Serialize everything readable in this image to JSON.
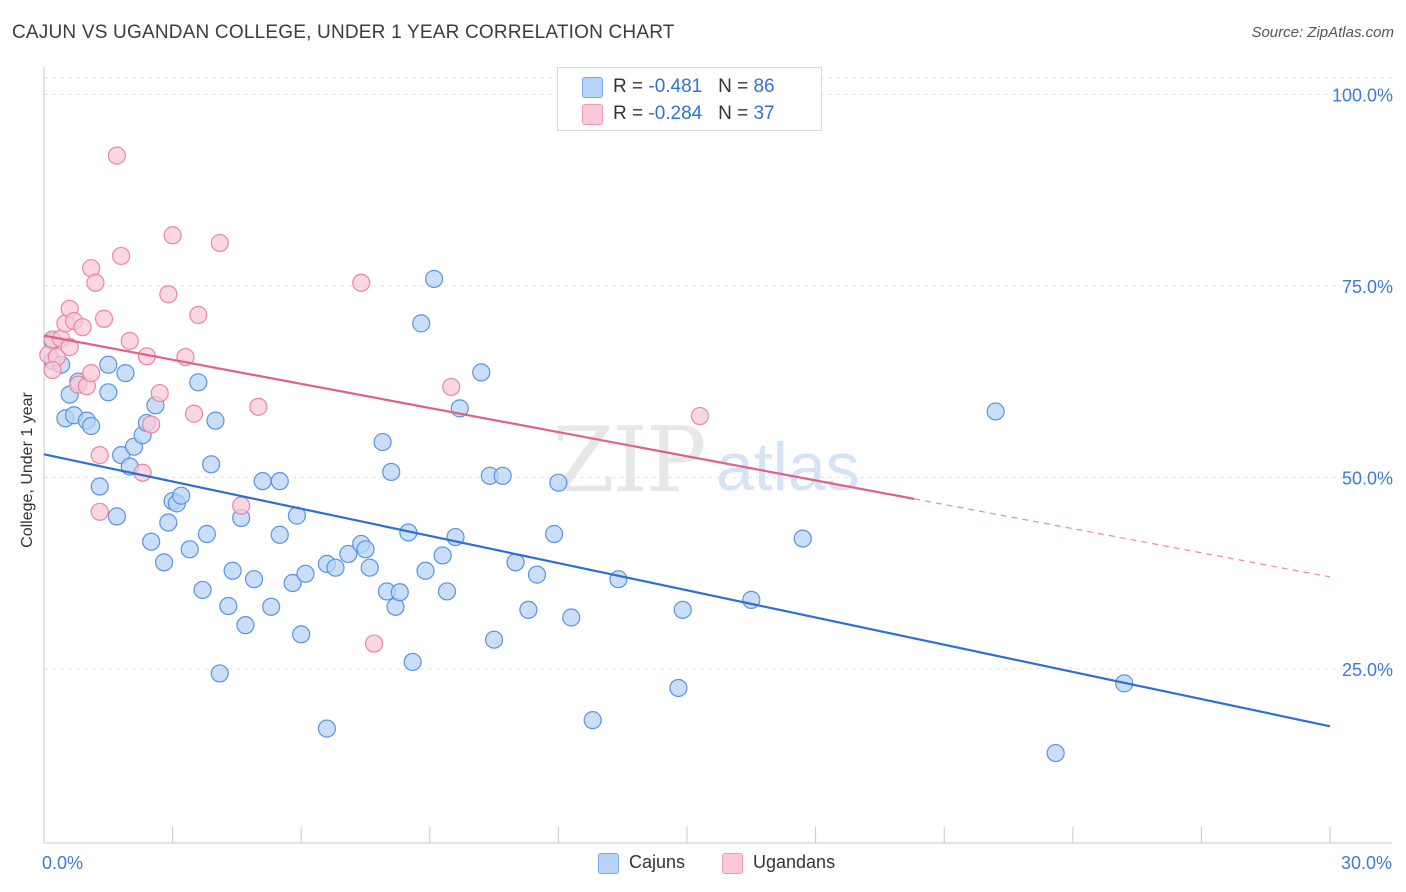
{
  "title": "CAJUN VS UGANDAN COLLEGE, UNDER 1 YEAR CORRELATION CHART",
  "source": "Source: ZipAtlas.com",
  "watermark": {
    "zip": "ZIP",
    "atlas": "atlas"
  },
  "stats": [
    {
      "r_label": "R = ",
      "r": "-0.481",
      "n_label": "N = ",
      "n": "86",
      "color": "#b7d3f7",
      "border": "#7aa9e8"
    },
    {
      "r_label": "R = ",
      "r": "-0.284",
      "n_label": "N = ",
      "n": "37",
      "color": "#f9c9d7",
      "border": "#ee9ab3"
    }
  ],
  "legend": [
    {
      "label": "Cajuns",
      "color": "#b7d3f7",
      "border": "#7aa9e8"
    },
    {
      "label": "Ugandans",
      "color": "#f9c9d7",
      "border": "#ee9ab3"
    }
  ],
  "chart_data": {
    "type": "scatter",
    "title": "CAJUN VS UGANDAN COLLEGE, UNDER 1 YEAR CORRELATION CHART",
    "xlabel": "",
    "ylabel": "College, Under 1 year",
    "xlim": [
      0,
      30
    ],
    "ylim": [
      2,
      102
    ],
    "x_tick_labels": [
      {
        "value": 0,
        "label": "0.0%"
      },
      {
        "value": 30,
        "label": "30.0%"
      }
    ],
    "y_tick_labels": [
      {
        "value": 100,
        "label": "100.0%"
      },
      {
        "value": 75,
        "label": "75.0%"
      },
      {
        "value": 50,
        "label": "50.0%"
      },
      {
        "value": 25,
        "label": "25.0%"
      }
    ],
    "grid": true,
    "legend_position": "bottom-center",
    "series": [
      {
        "name": "Cajuns",
        "color": "#5a93df",
        "fill": "#b7d3f7",
        "trend": {
          "x": [
            0,
            30
          ],
          "y": [
            53,
            17.5
          ],
          "dashed_from": null
        },
        "points": [
          [
            0.2,
            65.2
          ],
          [
            0.2,
            67.8
          ],
          [
            0.4,
            64.7
          ],
          [
            0.5,
            57.7
          ],
          [
            0.6,
            60.8
          ],
          [
            0.7,
            58.1
          ],
          [
            0.8,
            62.5
          ],
          [
            1.0,
            57.4
          ],
          [
            1.1,
            56.7
          ],
          [
            1.3,
            48.8
          ],
          [
            1.5,
            61.1
          ],
          [
            1.5,
            64.7
          ],
          [
            1.7,
            44.9
          ],
          [
            1.8,
            52.9
          ],
          [
            1.9,
            63.6
          ],
          [
            2.0,
            51.4
          ],
          [
            2.1,
            54.0
          ],
          [
            2.3,
            55.5
          ],
          [
            2.4,
            57.1
          ],
          [
            2.5,
            41.6
          ],
          [
            2.6,
            59.4
          ],
          [
            2.8,
            38.9
          ],
          [
            2.9,
            44.1
          ],
          [
            3.0,
            46.9
          ],
          [
            3.1,
            46.6
          ],
          [
            3.2,
            47.6
          ],
          [
            3.4,
            40.6
          ],
          [
            3.6,
            62.4
          ],
          [
            3.7,
            35.3
          ],
          [
            3.8,
            42.6
          ],
          [
            3.9,
            51.7
          ],
          [
            4.0,
            57.4
          ],
          [
            4.1,
            24.4
          ],
          [
            4.3,
            33.2
          ],
          [
            4.4,
            37.8
          ],
          [
            4.6,
            44.7
          ],
          [
            4.7,
            30.7
          ],
          [
            4.9,
            36.7
          ],
          [
            5.1,
            49.5
          ],
          [
            5.3,
            33.1
          ],
          [
            5.5,
            49.5
          ],
          [
            5.5,
            42.5
          ],
          [
            5.8,
            36.2
          ],
          [
            5.9,
            45.0
          ],
          [
            6.0,
            29.5
          ],
          [
            6.1,
            37.4
          ],
          [
            6.6,
            38.7
          ],
          [
            6.6,
            17.2
          ],
          [
            6.8,
            38.2
          ],
          [
            7.1,
            40.0
          ],
          [
            7.4,
            41.3
          ],
          [
            7.5,
            40.6
          ],
          [
            7.6,
            38.2
          ],
          [
            7.9,
            54.6
          ],
          [
            8.0,
            35.1
          ],
          [
            8.1,
            50.7
          ],
          [
            8.2,
            33.1
          ],
          [
            8.3,
            35.0
          ],
          [
            8.5,
            42.8
          ],
          [
            8.6,
            25.9
          ],
          [
            8.9,
            37.8
          ],
          [
            9.3,
            39.8
          ],
          [
            9.4,
            35.1
          ],
          [
            9.6,
            42.2
          ],
          [
            9.7,
            59.0
          ],
          [
            10.2,
            63.7
          ],
          [
            10.4,
            50.2
          ],
          [
            10.5,
            28.8
          ],
          [
            10.7,
            50.2
          ],
          [
            11.0,
            38.9
          ],
          [
            11.3,
            32.7
          ],
          [
            11.5,
            37.3
          ],
          [
            11.9,
            42.6
          ],
          [
            12.0,
            49.3
          ],
          [
            12.3,
            31.7
          ],
          [
            12.8,
            18.3
          ],
          [
            13.4,
            36.7
          ],
          [
            14.8,
            22.5
          ],
          [
            14.9,
            32.7
          ],
          [
            16.5,
            34.0
          ],
          [
            17.7,
            42.0
          ],
          [
            22.2,
            58.6
          ],
          [
            23.6,
            14.0
          ],
          [
            25.2,
            23.1
          ],
          [
            8.8,
            70.1
          ],
          [
            9.1,
            75.9
          ]
        ]
      },
      {
        "name": "Ugandans",
        "color": "#ea86a4",
        "fill": "#f9c9d7",
        "trend": {
          "x": [
            0,
            30
          ],
          "y": [
            68.5,
            37
          ],
          "dashed_from": 20.3
        },
        "points": [
          [
            0.1,
            66.0
          ],
          [
            0.2,
            68.0
          ],
          [
            0.3,
            65.7
          ],
          [
            0.4,
            68.1
          ],
          [
            0.5,
            70.1
          ],
          [
            0.6,
            72.0
          ],
          [
            0.7,
            70.4
          ],
          [
            0.8,
            62.1
          ],
          [
            0.9,
            69.6
          ],
          [
            1.0,
            61.9
          ],
          [
            1.1,
            77.3
          ],
          [
            1.1,
            63.6
          ],
          [
            1.2,
            75.4
          ],
          [
            1.3,
            52.9
          ],
          [
            1.3,
            45.5
          ],
          [
            1.4,
            70.7
          ],
          [
            1.7,
            92.0
          ],
          [
            1.8,
            78.9
          ],
          [
            2.0,
            67.8
          ],
          [
            2.3,
            50.6
          ],
          [
            2.4,
            65.8
          ],
          [
            2.5,
            56.9
          ],
          [
            2.7,
            61.0
          ],
          [
            2.9,
            73.9
          ],
          [
            3.0,
            81.6
          ],
          [
            3.3,
            65.7
          ],
          [
            3.6,
            71.2
          ],
          [
            3.5,
            58.3
          ],
          [
            4.1,
            80.6
          ],
          [
            4.6,
            46.3
          ],
          [
            5.0,
            59.2
          ],
          [
            7.4,
            75.4
          ],
          [
            7.7,
            28.3
          ],
          [
            9.5,
            61.8
          ],
          [
            15.3,
            58.0
          ],
          [
            0.2,
            64.0
          ],
          [
            0.6,
            67.0
          ]
        ]
      }
    ]
  }
}
